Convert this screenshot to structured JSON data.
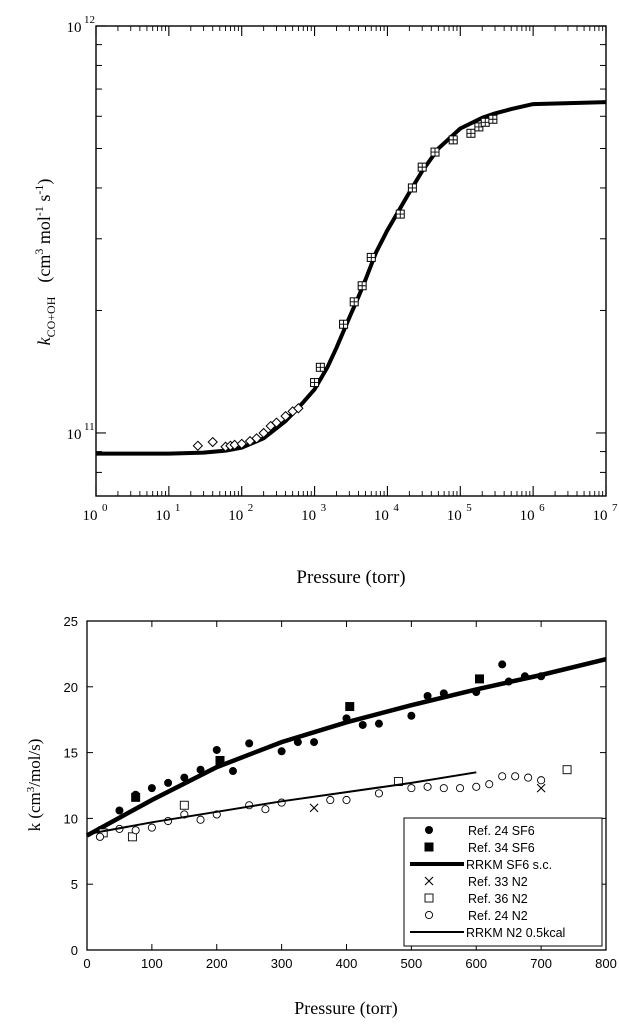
{
  "chart_data": [
    {
      "type": "line",
      "xlabel": "Pressure (torr)",
      "ylabel_main": "k",
      "ylabel_sub": "CO+OH",
      "ylabel_units": "(cm3 mol-1 s-1)",
      "x_scale": "log",
      "y_scale": "log",
      "xlim": [
        1,
        10000000
      ],
      "ylim": [
        70000000000,
        1000000000000
      ],
      "x_ticks": [
        "0",
        "1",
        "2",
        "3",
        "4",
        "5",
        "6",
        "7"
      ],
      "y_ticks": [
        "11",
        "12"
      ],
      "grid": false,
      "series": [
        {
          "marker": "curve",
          "x": [
            1,
            10,
            30,
            60,
            100,
            200,
            400,
            700,
            1000,
            1500,
            2000,
            3000,
            4000,
            5000,
            7000,
            10000,
            20000,
            30000,
            50000,
            100000,
            200000,
            300000,
            500000,
            1000000,
            10000000
          ],
          "y": [
            89000000000,
            89000000000,
            89500000000,
            90500000000,
            92000000000,
            97000000000,
            107000000000,
            119000000000,
            128000000000,
            145000000000,
            162000000000,
            192000000000,
            216000000000,
            238000000000,
            278000000000,
            315000000000,
            390000000000,
            440000000000,
            500000000000,
            560000000000,
            595000000000,
            610000000000,
            625000000000,
            643000000000,
            650000000000
          ]
        },
        {
          "marker": "diamond",
          "x": [
            25,
            40,
            60,
            70,
            80,
            100,
            130,
            160,
            200,
            250,
            300,
            400,
            500,
            600
          ],
          "y": [
            93000000000,
            95000000000,
            92500000000,
            93000000000,
            93500000000,
            94000000000,
            95500000000,
            97000000000,
            100000000000,
            104000000000,
            106000000000,
            110000000000,
            113000000000,
            115000000000
          ]
        },
        {
          "marker": "boxed-cross",
          "x": [
            1000,
            1200,
            2500,
            3500,
            4500,
            6000,
            15000,
            22000,
            30000,
            45000,
            80000,
            140000,
            180000,
            220000,
            280000
          ],
          "y": [
            133000000000,
            145000000000,
            185000000000,
            210000000000,
            230000000000,
            270000000000,
            345000000000,
            400000000000,
            450000000000,
            490000000000,
            525000000000,
            545000000000,
            565000000000,
            580000000000,
            590000000000
          ]
        }
      ]
    },
    {
      "type": "line",
      "xlabel": "Pressure (torr)",
      "ylabel": "k (cm3/mol/s)",
      "xlim": [
        0,
        800
      ],
      "ylim": [
        0,
        25
      ],
      "x_ticks": [
        "0",
        "100",
        "200",
        "300",
        "400",
        "500",
        "600",
        "700",
        "800"
      ],
      "y_ticks": [
        "0",
        "5",
        "10",
        "15",
        "20",
        "25"
      ],
      "grid": false,
      "legend_position": "bottom-right",
      "series": [
        {
          "name": "Ref. 24 SF6",
          "marker": "filled-circle",
          "x": [
            20,
            50,
            75,
            100,
            125,
            150,
            175,
            200,
            225,
            250,
            300,
            325,
            350,
            400,
            425,
            450,
            500,
            525,
            550,
            600,
            640,
            650,
            675,
            700
          ],
          "y": [
            9.1,
            10.6,
            11.8,
            12.3,
            12.7,
            13.1,
            13.7,
            15.2,
            13.6,
            15.7,
            15.1,
            15.8,
            15.8,
            17.6,
            17.1,
            17.2,
            17.8,
            19.3,
            19.5,
            19.6,
            21.7,
            20.4,
            20.8,
            20.8
          ]
        },
        {
          "name": "Ref. 34 SF6",
          "marker": "filled-square",
          "x": [
            75,
            205,
            405,
            605
          ],
          "y": [
            11.6,
            14.4,
            18.5,
            20.6
          ]
        },
        {
          "name": "RRKM SF6 s.c.",
          "marker": "thick-line",
          "x": [
            0,
            100,
            200,
            300,
            400,
            500,
            600,
            700,
            800
          ],
          "y": [
            8.7,
            11.4,
            13.9,
            15.8,
            17.3,
            18.6,
            19.8,
            20.9,
            22.1
          ]
        },
        {
          "name": "Ref. 33 N2",
          "marker": "cross",
          "x": [
            350,
            700
          ],
          "y": [
            10.8,
            12.3
          ]
        },
        {
          "name": "Ref. 36 N2",
          "marker": "open-square",
          "x": [
            25,
            70,
            150,
            480,
            740
          ],
          "y": [
            8.9,
            8.6,
            11.0,
            12.8,
            13.7
          ]
        },
        {
          "name": "Ref. 24 N2",
          "marker": "open-circle",
          "x": [
            20,
            50,
            75,
            100,
            125,
            150,
            175,
            200,
            250,
            275,
            300,
            375,
            400,
            450,
            500,
            525,
            550,
            575,
            600,
            620,
            640,
            660,
            680,
            700
          ],
          "y": [
            8.6,
            9.2,
            9.1,
            9.3,
            9.8,
            10.3,
            9.9,
            10.3,
            11.0,
            10.7,
            11.2,
            11.4,
            11.4,
            11.9,
            12.3,
            12.4,
            12.3,
            12.3,
            12.4,
            12.6,
            13.2,
            13.2,
            13.1,
            12.9
          ]
        },
        {
          "name": "RRKM N2 0.5kcal",
          "marker": "thin-line",
          "x": [
            0,
            100,
            200,
            300,
            400,
            500,
            600
          ],
          "y": [
            8.8,
            9.7,
            10.5,
            11.3,
            12.0,
            12.7,
            13.5
          ]
        }
      ]
    }
  ]
}
